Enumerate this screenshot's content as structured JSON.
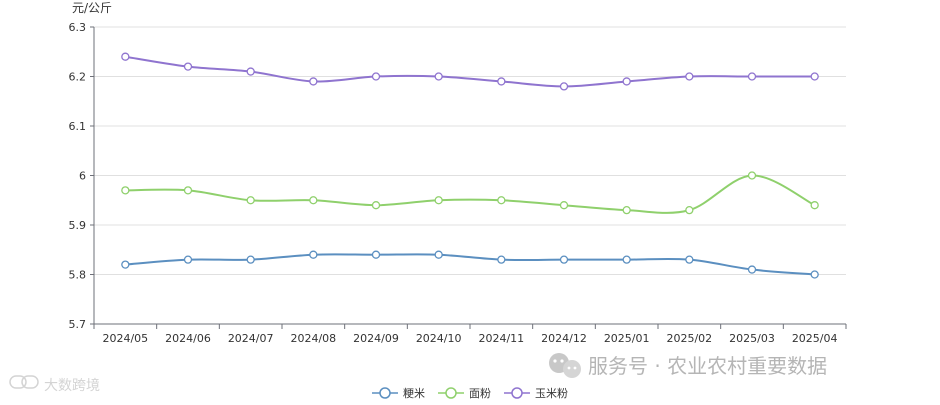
{
  "chart_data": {
    "type": "line",
    "ylabel": "元/公斤",
    "ylim": [
      5.7,
      6.3
    ],
    "yticks": [
      5.7,
      5.8,
      5.9,
      6,
      6.1,
      6.2,
      6.3
    ],
    "grid": true,
    "smooth": true,
    "legend_position": "bottom-center",
    "categories": [
      "2024/05",
      "2024/06",
      "2024/07",
      "2024/08",
      "2024/09",
      "2024/10",
      "2024/11",
      "2024/12",
      "2025/01",
      "2025/02",
      "2025/03",
      "2025/04"
    ],
    "series": [
      {
        "name": "粳米",
        "color": "#5b8fc0",
        "values": [
          5.82,
          5.83,
          5.83,
          5.84,
          5.84,
          5.84,
          5.83,
          5.83,
          5.83,
          5.83,
          5.81,
          5.8
        ]
      },
      {
        "name": "面粉",
        "color": "#8fd06c",
        "values": [
          5.97,
          5.97,
          5.95,
          5.95,
          5.94,
          5.95,
          5.95,
          5.94,
          5.93,
          5.93,
          6.0,
          5.94
        ]
      },
      {
        "name": "玉米粉",
        "color": "#8f74cf",
        "values": [
          6.24,
          6.22,
          6.21,
          6.19,
          6.2,
          6.2,
          6.19,
          6.18,
          6.19,
          6.2,
          6.2,
          6.2
        ]
      }
    ]
  },
  "watermark": {
    "text": "服务号 · 农业农村重要数据",
    "icon": "wechat-icon",
    "left_text": "大数跨境"
  }
}
